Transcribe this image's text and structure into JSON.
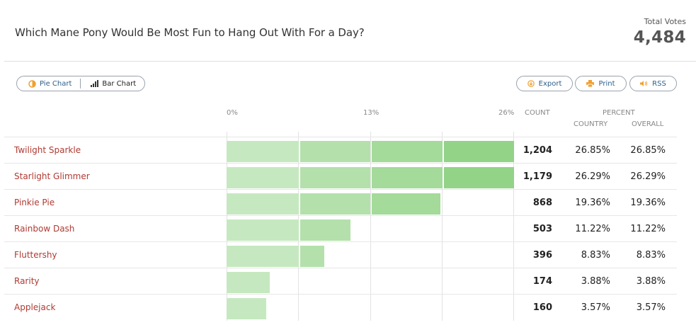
{
  "poll": {
    "title": "Which Mane Pony Would Be Most Fun to Hang Out With For a Day?",
    "total_votes_label": "Total Votes",
    "total_votes": "4,484"
  },
  "toolbar": {
    "pie_chart_label": "Pie Chart",
    "bar_chart_label": "Bar Chart",
    "export_label": "Export",
    "print_label": "Print",
    "rss_label": "RSS"
  },
  "table_headers": {
    "count": "COUNT",
    "percent": "PERCENT",
    "country": "COUNTRY",
    "overall": "OVERALL"
  },
  "chart_data": {
    "type": "bar",
    "orientation": "horizontal",
    "x_ticks": [
      "0%",
      "13%",
      "26%"
    ],
    "xlim": [
      0,
      26
    ],
    "grid": true,
    "categories": [
      "Twilight Sparkle",
      "Starlight Glimmer",
      "Pinkie Pie",
      "Rainbow Dash",
      "Fluttershy",
      "Rarity",
      "Applejack"
    ],
    "counts": [
      "1,204",
      "1,179",
      "868",
      "503",
      "396",
      "174",
      "160"
    ],
    "values": [
      26.85,
      26.29,
      19.36,
      11.22,
      8.83,
      3.88,
      3.57
    ],
    "country_percent": [
      "26.85%",
      "26.29%",
      "19.36%",
      "11.22%",
      "8.83%",
      "3.88%",
      "3.57%"
    ],
    "overall_percent": [
      "26.85%",
      "26.29%",
      "19.36%",
      "11.22%",
      "8.83%",
      "3.88%",
      "3.57%"
    ],
    "colors": [
      "#c6e8c0",
      "#b4e0ac",
      "#a4da9a",
      "#92d388"
    ]
  }
}
